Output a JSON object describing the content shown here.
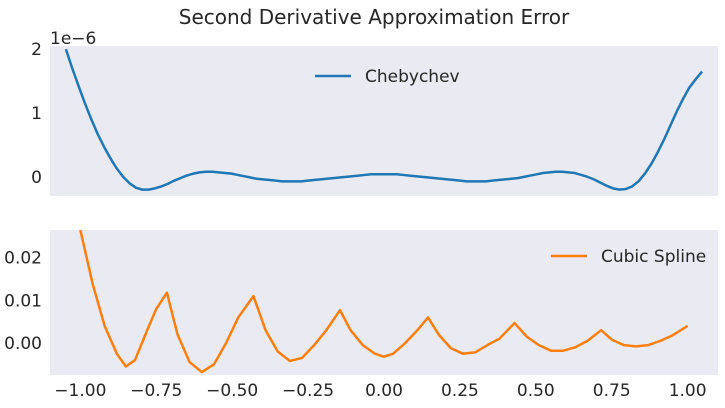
{
  "chart_data": {
    "title": "Second Derivative Approximation Error",
    "panels": [
      {
        "type": "line",
        "xlim": [
          -1.05,
          1.05
        ],
        "ylim": [
          -0.3,
          2.05
        ],
        "y_scale_label": "1e−6",
        "yticks": [
          0,
          1,
          2
        ],
        "ytick_labels": [
          "0",
          "1",
          "2"
        ],
        "show_xtick_labels": false,
        "grid": false,
        "legend_position": "top-center",
        "series": [
          {
            "name": "Chebychev",
            "color": "#1f77b4",
            "x": [
              -1.0,
              -0.98,
              -0.96,
              -0.94,
              -0.92,
              -0.9,
              -0.88,
              -0.86,
              -0.84,
              -0.82,
              -0.8,
              -0.78,
              -0.76,
              -0.74,
              -0.72,
              -0.7,
              -0.68,
              -0.66,
              -0.64,
              -0.62,
              -0.6,
              -0.58,
              -0.56,
              -0.54,
              -0.52,
              -0.5,
              -0.48,
              -0.46,
              -0.44,
              -0.42,
              -0.4,
              -0.38,
              -0.36,
              -0.34,
              -0.32,
              -0.3,
              -0.28,
              -0.26,
              -0.24,
              -0.22,
              -0.2,
              -0.18,
              -0.16,
              -0.14,
              -0.12,
              -0.1,
              -0.08,
              -0.06,
              -0.04,
              -0.02,
              0.0,
              0.02,
              0.04,
              0.06,
              0.08,
              0.1,
              0.12,
              0.14,
              0.16,
              0.18,
              0.2,
              0.22,
              0.24,
              0.26,
              0.28,
              0.3,
              0.32,
              0.34,
              0.36,
              0.38,
              0.4,
              0.42,
              0.44,
              0.46,
              0.48,
              0.5,
              0.52,
              0.54,
              0.56,
              0.58,
              0.6,
              0.62,
              0.64,
              0.66,
              0.68,
              0.7,
              0.72,
              0.74,
              0.76,
              0.78,
              0.8,
              0.82,
              0.84,
              0.86,
              0.88,
              0.9,
              0.92,
              0.94,
              0.96,
              0.98,
              1.0
            ],
            "y": [
              2.0,
              1.7,
              1.42,
              1.15,
              0.9,
              0.67,
              0.47,
              0.29,
              0.13,
              0.0,
              -0.1,
              -0.17,
              -0.2,
              -0.2,
              -0.18,
              -0.15,
              -0.11,
              -0.06,
              -0.02,
              0.02,
              0.05,
              0.07,
              0.08,
              0.08,
              0.07,
              0.06,
              0.05,
              0.03,
              0.01,
              -0.01,
              -0.03,
              -0.04,
              -0.05,
              -0.06,
              -0.07,
              -0.07,
              -0.07,
              -0.07,
              -0.06,
              -0.05,
              -0.04,
              -0.03,
              -0.02,
              -0.01,
              0.0,
              0.01,
              0.02,
              0.03,
              0.04,
              0.04,
              0.04,
              0.04,
              0.04,
              0.03,
              0.02,
              0.01,
              0.0,
              -0.01,
              -0.02,
              -0.03,
              -0.04,
              -0.05,
              -0.06,
              -0.07,
              -0.07,
              -0.07,
              -0.07,
              -0.06,
              -0.05,
              -0.04,
              -0.03,
              -0.02,
              0.0,
              0.02,
              0.04,
              0.06,
              0.07,
              0.08,
              0.08,
              0.07,
              0.06,
              0.03,
              0.0,
              -0.04,
              -0.09,
              -0.14,
              -0.18,
              -0.2,
              -0.19,
              -0.15,
              -0.07,
              0.05,
              0.2,
              0.38,
              0.58,
              0.8,
              1.02,
              1.22,
              1.4,
              1.53,
              1.65
            ]
          }
        ]
      },
      {
        "type": "line",
        "xlim": [
          -1.1,
          1.1
        ],
        "ylim": [
          -0.0075,
          0.0265
        ],
        "yticks": [
          0.0,
          0.01,
          0.02
        ],
        "ytick_labels": [
          "0.00",
          "0.01",
          "0.02"
        ],
        "xticks": [
          -1.0,
          -0.75,
          -0.5,
          -0.25,
          0.0,
          0.25,
          0.5,
          0.75,
          1.0
        ],
        "xtick_labels": [
          "−1.00",
          "−0.75",
          "−0.50",
          "−0.25",
          "0.00",
          "0.25",
          "0.50",
          "0.75",
          "1.00"
        ],
        "show_xtick_labels": true,
        "grid": false,
        "legend_position": "top-right",
        "series": [
          {
            "name": "Cubic Spline",
            "color": "#ff7f0e",
            "x": [
              -1.0,
              -0.96,
              -0.92,
              -0.88,
              -0.85,
              -0.82,
              -0.78,
              -0.75,
              -0.715,
              -0.68,
              -0.64,
              -0.6,
              -0.56,
              -0.52,
              -0.48,
              -0.43,
              -0.39,
              -0.35,
              -0.31,
              -0.27,
              -0.23,
              -0.19,
              -0.145,
              -0.11,
              -0.07,
              -0.03,
              0.0,
              0.03,
              0.07,
              0.11,
              0.145,
              0.18,
              0.22,
              0.26,
              0.3,
              0.34,
              0.38,
              0.43,
              0.47,
              0.51,
              0.55,
              0.59,
              0.63,
              0.67,
              0.715,
              0.75,
              0.79,
              0.83,
              0.87,
              0.91,
              0.95,
              1.0
            ],
            "y": [
              0.0265,
              0.014,
              0.004,
              -0.0025,
              -0.0055,
              -0.004,
              0.003,
              0.008,
              0.0118,
              0.002,
              -0.0045,
              -0.0068,
              -0.005,
              0.0,
              0.006,
              0.011,
              0.003,
              -0.002,
              -0.0042,
              -0.0035,
              -0.0005,
              0.003,
              0.0077,
              0.003,
              -0.0005,
              -0.0025,
              -0.0032,
              -0.0025,
              0.0,
              0.003,
              0.006,
              0.002,
              -0.0012,
              -0.0025,
              -0.0022,
              -0.0005,
              0.001,
              0.0047,
              0.0015,
              -0.0005,
              -0.0018,
              -0.0018,
              -0.001,
              0.0005,
              0.003,
              0.0008,
              -0.0005,
              -0.0008,
              -0.0005,
              0.0005,
              0.0018,
              0.004
            ]
          }
        ]
      }
    ]
  }
}
